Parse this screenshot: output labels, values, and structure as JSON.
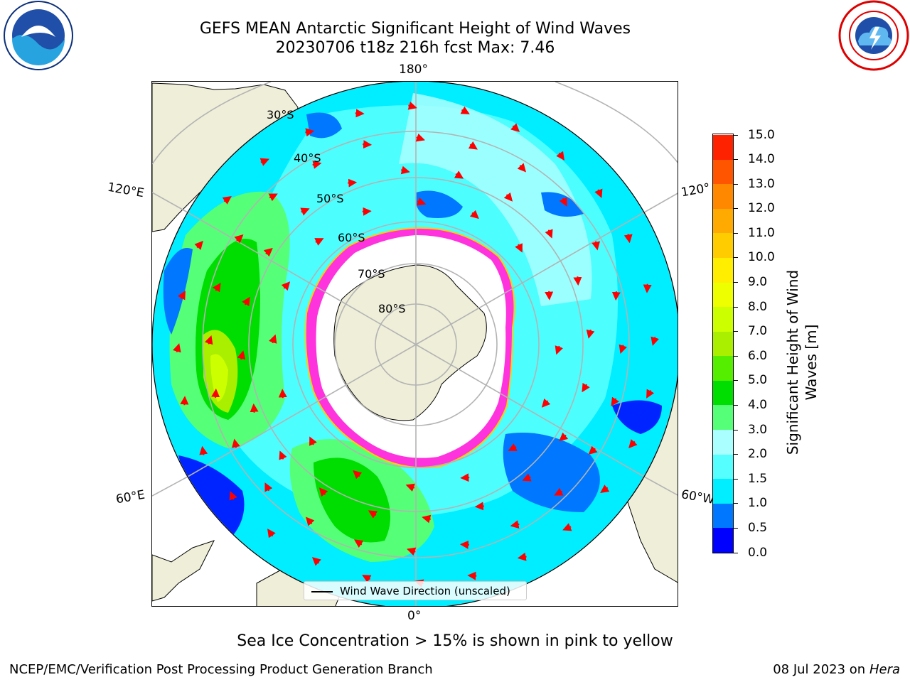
{
  "title": {
    "line1": "GEFS MEAN Antarctic Significant Height of Wind Waves",
    "line2": "20230706 t18z 216h fcst   Max: 7.46"
  },
  "map": {
    "longitude_labels": {
      "top": "180°",
      "bottom": "0°",
      "left_upper": "120°E",
      "left_lower": "60°E",
      "right_upper": "120°",
      "right_lower": "60°W"
    },
    "latitude_labels": [
      "30°S",
      "40°S",
      "50°S",
      "60°S",
      "70°S",
      "80°S"
    ],
    "colors": {
      "land": "#efeed9",
      "ice_free_antarctica": "#ffffff",
      "sea_ice_edge": "#ff33dd",
      "arrows": "#ff0000",
      "grid": "#b3b3b3"
    }
  },
  "legend": {
    "label": "Wind Wave Direction (unscaled)"
  },
  "colorbar": {
    "label_line1": "Significant Height of Wind",
    "label_line2": "Waves [m]",
    "ticks": [
      "0.0",
      "0.5",
      "1.0",
      "1.5",
      "2.0",
      "3.0",
      "4.0",
      "5.0",
      "6.0",
      "7.0",
      "8.0",
      "9.0",
      "10.0",
      "11.0",
      "12.0",
      "13.0",
      "14.0",
      "15.0"
    ],
    "colors": [
      "#0000ff",
      "#0077ff",
      "#00eeff",
      "#55ffff",
      "#aaffff",
      "#55ff77",
      "#00dd00",
      "#55ee00",
      "#aaee00",
      "#ccff00",
      "#eeff00",
      "#ffee00",
      "#ffcc00",
      "#ffaa00",
      "#ff8800",
      "#ff5500",
      "#ff2200"
    ]
  },
  "note": "Sea Ice Concentration > 15% is shown in pink to yellow",
  "footer": {
    "left": "NCEP/EMC/Verification Post Processing Product Generation Branch",
    "right_prefix": "08 Jul 2023 on ",
    "right_machine": "Hera"
  }
}
